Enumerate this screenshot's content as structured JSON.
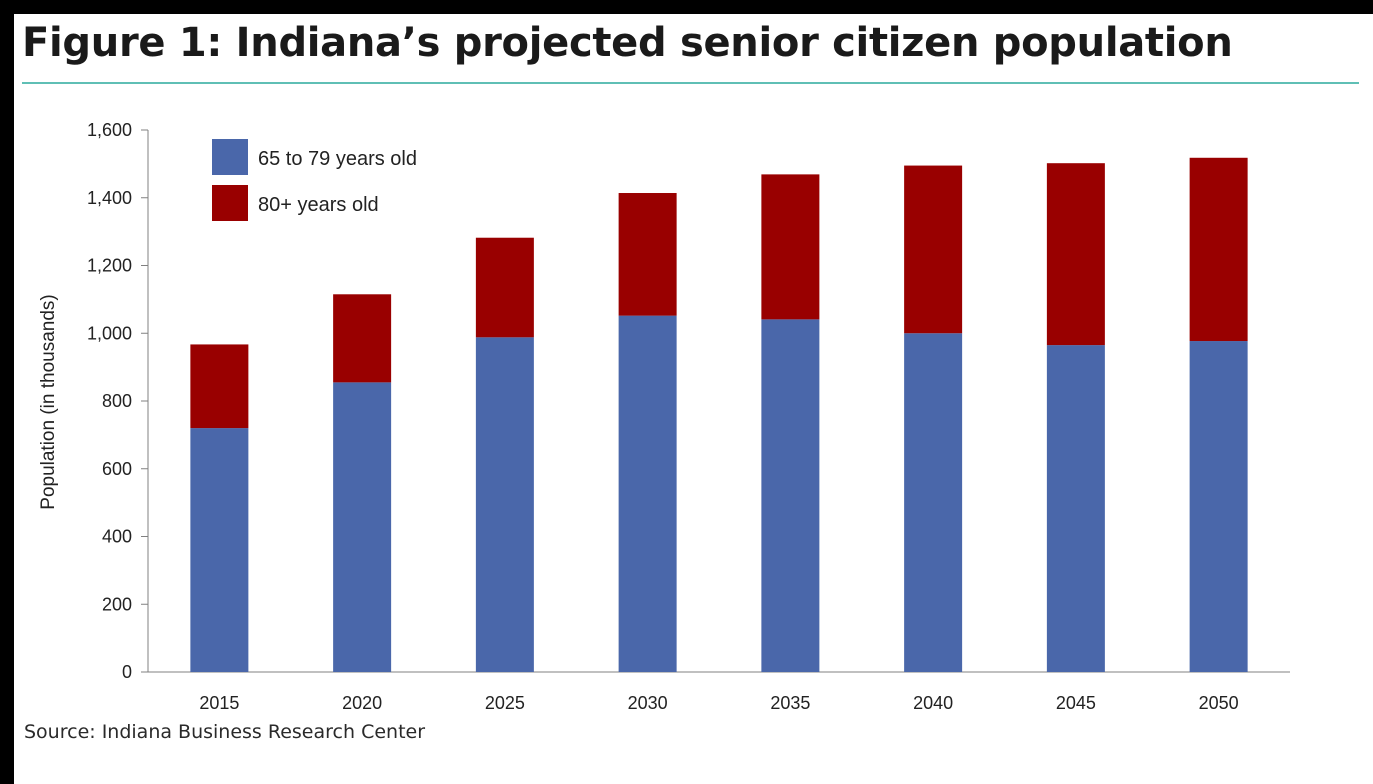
{
  "title": "Figure 1: Indiana’s projected senior citizen population",
  "source": "Source: Indiana Business Research Center",
  "colors": {
    "series_65_79": "#4a67aa",
    "series_80_plus": "#990000",
    "title_rule": "#5fbfb5"
  },
  "chart_data": {
    "type": "bar",
    "stacked": true,
    "categories": [
      "2015",
      "2020",
      "2025",
      "2030",
      "2035",
      "2040",
      "2045",
      "2050"
    ],
    "series": [
      {
        "name": "65 to 79 years old",
        "values": [
          720,
          855,
          988,
          1052,
          1041,
          1000,
          965,
          977
        ]
      },
      {
        "name": "80+ years old",
        "values": [
          247,
          260,
          294,
          362,
          428,
          495,
          537,
          541
        ]
      }
    ],
    "ylabel": "Population (in thousands)",
    "xlabel": "",
    "ylim": [
      0,
      1600
    ],
    "yticks": [
      "0",
      "200",
      "400",
      "600",
      "800",
      "1,000",
      "1,200",
      "1,400",
      "1,600"
    ],
    "legend_position": "top-left",
    "grid": false
  }
}
